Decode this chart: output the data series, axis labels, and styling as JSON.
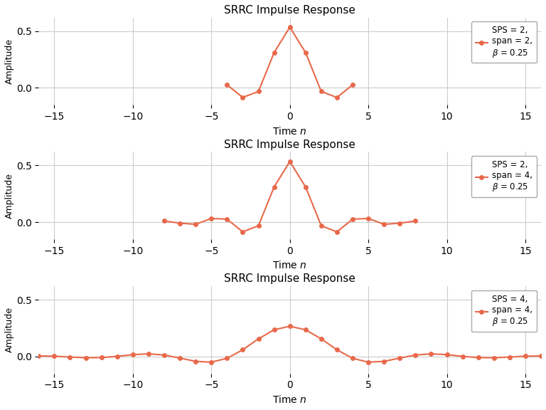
{
  "title": "SRRC Impulse Response",
  "xlabel": "Time $n$",
  "ylabel": "Amplitude",
  "line_color": "#E8694A",
  "marker": "o",
  "markersize": 4,
  "linewidth": 1.5,
  "background_color": "#ffffff",
  "grid_color": "#cccccc",
  "xlim": [
    -16,
    16
  ],
  "ylim": [
    -0.15,
    0.62
  ],
  "xticks": [
    -15,
    -10,
    -5,
    0,
    5,
    10,
    15
  ],
  "yticks": [
    0.0,
    0.5
  ],
  "figsize": [
    7.68,
    5.76
  ],
  "dpi": 100,
  "subplots": [
    {
      "sps": 2,
      "span": 2,
      "beta": 0.25
    },
    {
      "sps": 2,
      "span": 4,
      "beta": 0.25
    },
    {
      "sps": 4,
      "span": 4,
      "beta": 0.25
    }
  ]
}
